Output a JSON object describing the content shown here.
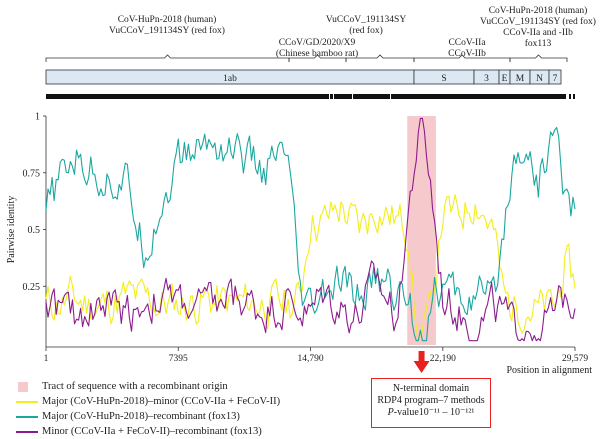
{
  "chart_data": {
    "type": "line",
    "xlabel": "Position in alignment",
    "ylabel": "Pairwise identity",
    "xlim": [
      1,
      29579
    ],
    "ylim": [
      0,
      1
    ],
    "x_ticks": [
      "1",
      "7395",
      "14,790",
      "22,190",
      "29,579"
    ],
    "y_ticks": [
      "1",
      "0.75",
      "0.5",
      "0.25"
    ],
    "recombinant_region": {
      "start": 20200,
      "end": 21800,
      "legend": "Tract of sequence with a recombinant origin"
    },
    "series": [
      {
        "name": "Major (CoV-HuPn-2018)–minor (CCoV-IIa + FeCoV-II)",
        "color": "#f2ee1b",
        "x": [
          1,
          1500,
          3000,
          4500,
          6000,
          7395,
          9000,
          10500,
          12000,
          13500,
          14200,
          14790,
          15500,
          16500,
          17500,
          18500,
          19500,
          20300,
          20700,
          21100,
          21500,
          22190,
          23000,
          24000,
          25000,
          25600,
          26000,
          26800,
          27500,
          28500,
          29000,
          29579
        ],
        "values": [
          0.17,
          0.19,
          0.16,
          0.2,
          0.18,
          0.17,
          0.19,
          0.17,
          0.18,
          0.17,
          0.2,
          0.56,
          0.53,
          0.6,
          0.5,
          0.6,
          0.55,
          0.5,
          0.05,
          0.05,
          0.12,
          0.58,
          0.55,
          0.65,
          0.5,
          0.2,
          0.16,
          0.18,
          0.14,
          0.16,
          0.35,
          0.25
        ]
      },
      {
        "name": "Major (CoV-HuPn-2018)–recombinant (fox13)",
        "color": "#1aa7a0",
        "x": [
          1,
          1500,
          3000,
          4500,
          5500,
          7395,
          9000,
          10500,
          12000,
          13500,
          14200,
          14790,
          15500,
          16500,
          17500,
          18500,
          19500,
          20300,
          20700,
          21100,
          21500,
          22190,
          23000,
          24000,
          25000,
          25600,
          26000,
          26800,
          27500,
          28500,
          29000,
          29579
        ],
        "values": [
          0.58,
          0.82,
          0.75,
          0.7,
          0.42,
          0.8,
          0.88,
          0.86,
          0.75,
          0.82,
          0.18,
          0.12,
          0.2,
          0.25,
          0.2,
          0.28,
          0.22,
          0.2,
          0.05,
          0.05,
          0.2,
          0.25,
          0.18,
          0.22,
          0.16,
          0.5,
          0.78,
          0.9,
          0.7,
          0.95,
          0.65,
          0.6
        ]
      },
      {
        "name": "Minor (CCoV-IIa + FeCoV-II)–recombinant (fox13)",
        "color": "#8c1c8d",
        "x": [
          1,
          1500,
          3000,
          4500,
          6000,
          7395,
          9000,
          10500,
          12000,
          13500,
          14200,
          14790,
          15500,
          16500,
          17500,
          18500,
          19500,
          20300,
          20700,
          21100,
          21500,
          22190,
          23000,
          24000,
          25000,
          25600,
          26000,
          26800,
          27500,
          28500,
          29000,
          29579
        ],
        "values": [
          0.2,
          0.1,
          0.18,
          0.14,
          0.2,
          0.18,
          0.15,
          0.2,
          0.15,
          0.18,
          0.15,
          0.12,
          0.22,
          0.16,
          0.12,
          0.28,
          0.12,
          0.6,
          0.85,
          0.95,
          0.7,
          0.2,
          0.14,
          0.06,
          0.15,
          0.12,
          0.05,
          0.1,
          0.08,
          0.12,
          0.2,
          0.25
        ]
      }
    ],
    "genome": {
      "segments": [
        "1ab",
        "S",
        "3",
        "E",
        "M",
        "N",
        "7"
      ]
    },
    "annotations": [
      {
        "lines": [
          "CoV-HuPn-2018 (human)",
          "VuCCoV_191134SY (red fox)"
        ]
      },
      {
        "lines": [
          "CCoV/GD/2020/X9",
          "(Chinese bamboo rat)"
        ]
      },
      {
        "lines": [
          "VuCCoV_191134SY",
          "(red fox)"
        ]
      },
      {
        "lines": [
          "CCoV-IIa",
          "CCoV-IIb"
        ]
      },
      {
        "lines": [
          "CoV-HuPn-2018 (human)",
          "VuCCoV_191134SY (red fox)",
          "CCoV-IIa and -IIb",
          "fox113"
        ]
      }
    ],
    "callout": {
      "line1": "N-terminal domain",
      "line2": "RDP4 program–7 methods",
      "line3_prefix": "P",
      "line3_rest": "-value10⁻¹¹ – 10⁻¹²¹"
    }
  }
}
